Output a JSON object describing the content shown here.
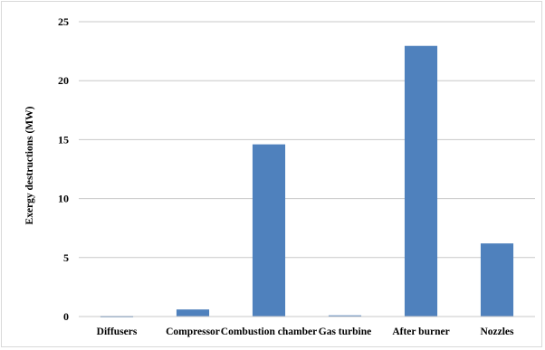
{
  "chart_data": {
    "type": "bar",
    "title": "",
    "xlabel": "",
    "ylabel": "Exergy destructions (MW)",
    "categories": [
      "Diffusers",
      "Compressor",
      "Combustion chamber",
      "Gas turbine",
      "After burner",
      "Nozzles"
    ],
    "values": [
      0.05,
      0.6,
      14.6,
      0.1,
      22.95,
      6.2
    ],
    "ylim": [
      0,
      25
    ],
    "yticks": [
      0,
      5,
      10,
      15,
      20,
      25
    ],
    "grid": true,
    "legend": "none",
    "bar_color": "#4f81bd"
  }
}
